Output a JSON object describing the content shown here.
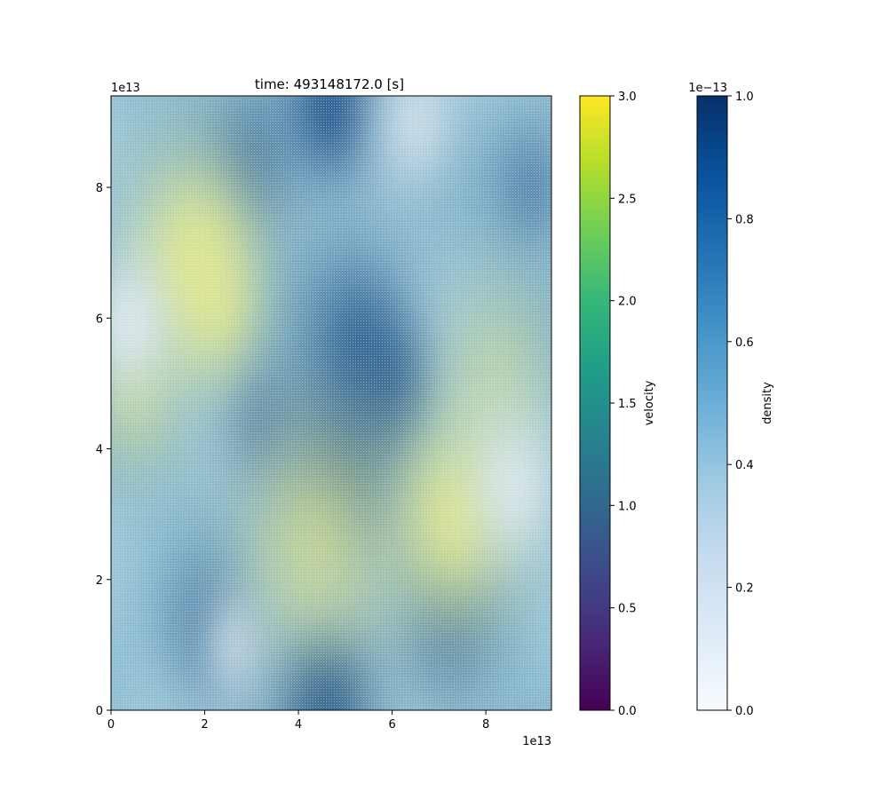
{
  "chart_data": {
    "type": "heatmap",
    "title": "time: 493148172.0 [s]",
    "x": {
      "lim": [
        0,
        9.4
      ],
      "ticks": [
        0,
        2,
        4,
        6,
        8
      ],
      "tick_labels": [
        "0",
        "2",
        "4",
        "6",
        "8"
      ],
      "offset_label": "1e13"
    },
    "y": {
      "lim": [
        0,
        9.4
      ],
      "ticks": [
        0,
        2,
        4,
        6,
        8
      ],
      "tick_labels": [
        "0",
        "2",
        "4",
        "6",
        "8"
      ],
      "offset_label": "1e13"
    },
    "colorbars": [
      {
        "name": "velocity",
        "label": "velocity",
        "colormap": "viridis",
        "range": [
          0.0,
          3.0
        ],
        "ticks": [
          0.0,
          0.5,
          1.0,
          1.5,
          2.0,
          2.5,
          3.0
        ],
        "tick_labels": [
          "0.0",
          "0.5",
          "1.0",
          "1.5",
          "2.0",
          "2.5",
          "3.0"
        ],
        "offset_label": "",
        "colors": [
          "#440154",
          "#482878",
          "#3e4989",
          "#31688e",
          "#26828e",
          "#1f9e89",
          "#35b779",
          "#6ece58",
          "#b5de2b",
          "#fde725"
        ]
      },
      {
        "name": "density",
        "label": "density",
        "colormap": "Blues",
        "range": [
          0.0,
          1.0
        ],
        "ticks": [
          0.0,
          0.2,
          0.4,
          0.6,
          0.8,
          1.0
        ],
        "tick_labels": [
          "0.0",
          "0.2",
          "0.4",
          "0.6",
          "0.8",
          "1.0"
        ],
        "offset_label": "1e−13",
        "colors": [
          "#f7fbff",
          "#deebf7",
          "#c6dbef",
          "#9ecae1",
          "#6baed6",
          "#4292c6",
          "#2171b5",
          "#08519c",
          "#08306b"
        ]
      }
    ],
    "field_features": [
      {
        "kind": "dense",
        "x": 4.7,
        "y": 9.2,
        "r": 1.0,
        "v": 1.0
      },
      {
        "kind": "dense",
        "x": 4.6,
        "y": 0.2,
        "r": 1.0,
        "v": 1.0
      },
      {
        "kind": "dense",
        "x": 5.3,
        "y": 5.6,
        "r": 1.2,
        "v": 0.85
      },
      {
        "kind": "dense",
        "x": 4.9,
        "y": 3.6,
        "r": 1.3,
        "v": 0.85
      },
      {
        "kind": "dense",
        "x": 6.0,
        "y": 5.0,
        "r": 0.8,
        "v": 0.7
      },
      {
        "kind": "dense",
        "x": 3.0,
        "y": 8.4,
        "r": 1.0,
        "v": 0.6
      },
      {
        "kind": "dense",
        "x": 9.0,
        "y": 8.0,
        "r": 0.9,
        "v": 0.55
      },
      {
        "kind": "dense",
        "x": 2.1,
        "y": 1.2,
        "r": 1.0,
        "v": 0.55
      },
      {
        "kind": "dense",
        "x": 7.2,
        "y": 1.3,
        "r": 1.1,
        "v": 0.55
      },
      {
        "kind": "dense",
        "x": 3.2,
        "y": 4.4,
        "r": 0.9,
        "v": 0.55
      },
      {
        "kind": "bright",
        "x": 1.8,
        "y": 7.0,
        "r": 1.3,
        "v": 1.0
      },
      {
        "kind": "bright",
        "x": 2.2,
        "y": 6.2,
        "r": 0.9,
        "v": 0.8
      },
      {
        "kind": "bright",
        "x": 7.3,
        "y": 2.9,
        "r": 1.3,
        "v": 1.0
      },
      {
        "kind": "bright",
        "x": 4.4,
        "y": 2.6,
        "r": 1.5,
        "v": 0.8
      },
      {
        "kind": "bright",
        "x": 8.3,
        "y": 5.2,
        "r": 1.2,
        "v": 0.5
      },
      {
        "kind": "bright",
        "x": 0.5,
        "y": 4.8,
        "r": 1.0,
        "v": 0.6
      },
      {
        "kind": "pale",
        "x": 0.4,
        "y": 5.9,
        "r": 0.8,
        "v": 1.0
      },
      {
        "kind": "pale",
        "x": 8.6,
        "y": 3.4,
        "r": 0.9,
        "v": 0.9
      },
      {
        "kind": "pale",
        "x": 6.5,
        "y": 9.0,
        "r": 0.9,
        "v": 0.8
      },
      {
        "kind": "pale",
        "x": 2.6,
        "y": 1.0,
        "r": 0.7,
        "v": 0.7
      }
    ]
  }
}
